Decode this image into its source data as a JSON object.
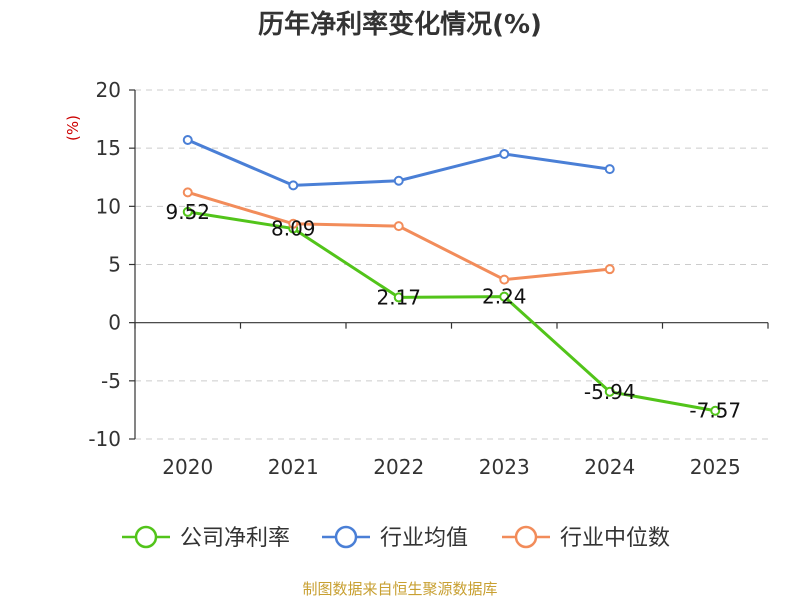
{
  "chart_data": {
    "type": "line",
    "title": "历年净利率变化情况(%)",
    "ylabel": "(%)",
    "xlabel": "",
    "categories": [
      "2020",
      "2021",
      "2022",
      "2023",
      "2024",
      "2025"
    ],
    "ylim": [
      -10,
      20
    ],
    "yticks": [
      20,
      15,
      10,
      5,
      0,
      -5,
      -10
    ],
    "grid": true,
    "legend_position": "bottom",
    "series": [
      {
        "name": "公司净利率",
        "color": "#52c41a",
        "values": [
          9.52,
          8.09,
          2.17,
          2.24,
          -5.94,
          -7.57
        ],
        "labels": [
          "9.52",
          "8.09",
          "2.17",
          "2.24",
          "-5.94",
          "-7.57"
        ]
      },
      {
        "name": "行业均值",
        "color": "#4a7fd6",
        "values": [
          15.7,
          11.8,
          12.2,
          14.5,
          13.2,
          null
        ]
      },
      {
        "name": "行业中位数",
        "color": "#f28c5a",
        "values": [
          11.2,
          8.5,
          8.3,
          3.7,
          4.6,
          null
        ]
      }
    ]
  },
  "colors": {
    "ylabel": "#cc0000",
    "source": "#c8a032"
  },
  "source_note": "制图数据来自恒生聚源数据库"
}
